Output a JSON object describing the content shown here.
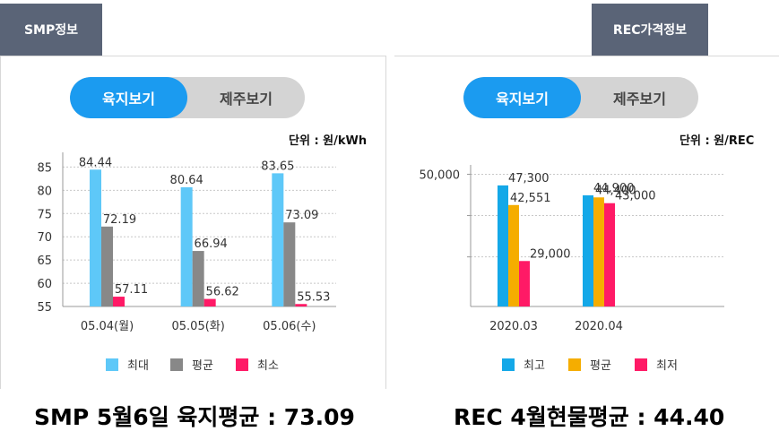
{
  "left_tab": {
    "label": "SMP정보"
  },
  "right_tab": {
    "label": "REC가격정보"
  },
  "smp": {
    "toggle": {
      "active": "육지보기",
      "inactive": "제주보기"
    },
    "unit": "단위 : 원/kWh",
    "summary": "SMP 5월6일 육지평균 : 73.09"
  },
  "rec": {
    "toggle": {
      "active": "육지보기",
      "inactive": "제주보기"
    },
    "unit": "단위 : 원/REC",
    "summary": "REC 4월현물평균 : 44.40"
  },
  "chart_data": [
    {
      "type": "bar",
      "categories": [
        "05.04(월)",
        "05.05(화)",
        "05.06(수)"
      ],
      "series": [
        {
          "name": "최대",
          "color": "#5ec8f8",
          "values": [
            84.44,
            80.64,
            83.65
          ]
        },
        {
          "name": "평균",
          "color": "#888888",
          "values": [
            72.19,
            66.94,
            73.09
          ]
        },
        {
          "name": "최소",
          "color": "#ff1a66",
          "values": [
            57.11,
            56.62,
            55.53
          ]
        }
      ],
      "yticks": [
        55,
        60,
        65,
        70,
        75,
        80,
        85
      ],
      "ylim": [
        55,
        87
      ],
      "grid": true,
      "legend": "bottom"
    },
    {
      "type": "bar",
      "categories": [
        "2020.03",
        "2020.04"
      ],
      "series": [
        {
          "name": "최고",
          "color": "#14a8e8",
          "values": [
            47300,
            44900
          ]
        },
        {
          "name": "평균",
          "color": "#f5ad00",
          "values": [
            42551,
            44400
          ]
        },
        {
          "name": "최저",
          "color": "#ff1a66",
          "values": [
            29000,
            43000
          ]
        }
      ],
      "value_labels": [
        [
          "47,300",
          "42,551",
          "29,000"
        ],
        [
          "44,900",
          "44,400",
          "43,000"
        ]
      ],
      "yticks_labeled": [
        "50,000"
      ],
      "ylim": [
        18000,
        54000
      ],
      "grid": true,
      "legend": "bottom"
    }
  ]
}
